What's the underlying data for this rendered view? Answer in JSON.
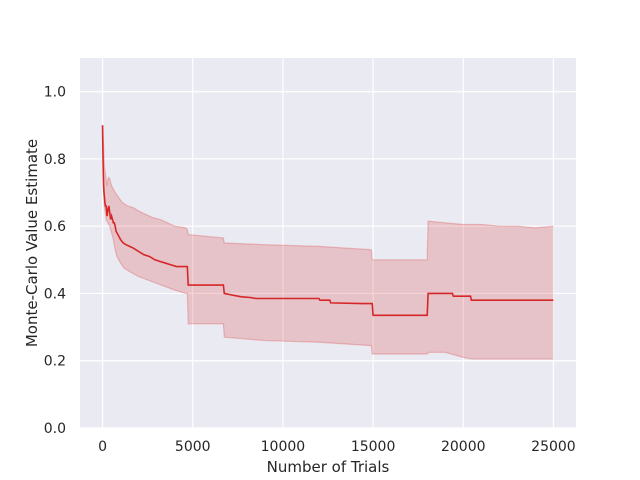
{
  "chart_data": {
    "type": "line",
    "xlabel": "Number of Trials",
    "ylabel": "Monte-Carlo Value Estimate",
    "xlim": [
      -1250,
      26250
    ],
    "ylim": [
      0.0,
      1.1
    ],
    "x_ticks": [
      0,
      5000,
      10000,
      15000,
      20000,
      25000
    ],
    "x_tick_labels": [
      "0",
      "5000",
      "10000",
      "15000",
      "20000",
      "25000"
    ],
    "y_ticks": [
      0.0,
      0.2,
      0.4,
      0.6,
      0.8,
      1.0
    ],
    "y_tick_labels": [
      "0.0",
      "0.2",
      "0.4",
      "0.6",
      "0.8",
      "1.0"
    ],
    "grid": true,
    "background_color": "#eaeaf2",
    "grid_color": "#ffffff",
    "series": [
      {
        "line_color": "#d62728",
        "band_color": "#d62728",
        "mean": {
          "x": [
            0,
            20,
            40,
            60,
            80,
            100,
            130,
            160,
            200,
            250,
            300,
            350,
            400,
            450,
            500,
            550,
            600,
            650,
            700,
            750,
            800,
            900,
            1000,
            1150,
            1300,
            1500,
            1700,
            2000,
            2300,
            2600,
            2900,
            3200,
            3500,
            3800,
            4100,
            4400,
            4700,
            4750,
            6700,
            6750,
            7200,
            7700,
            8200,
            8500,
            12000,
            12050,
            12600,
            12650,
            14400,
            14950,
            15000,
            18000,
            18050,
            19400,
            19450,
            20400,
            20450,
            25000
          ],
          "y": [
            0.9,
            0.82,
            0.76,
            0.72,
            0.7,
            0.69,
            0.67,
            0.66,
            0.66,
            0.63,
            0.65,
            0.66,
            0.64,
            0.62,
            0.63,
            0.62,
            0.61,
            0.61,
            0.6,
            0.585,
            0.58,
            0.57,
            0.56,
            0.55,
            0.545,
            0.54,
            0.535,
            0.525,
            0.515,
            0.51,
            0.5,
            0.495,
            0.49,
            0.485,
            0.48,
            0.48,
            0.48,
            0.425,
            0.425,
            0.4,
            0.395,
            0.39,
            0.388,
            0.385,
            0.385,
            0.38,
            0.38,
            0.372,
            0.37,
            0.37,
            0.335,
            0.335,
            0.4,
            0.4,
            0.392,
            0.392,
            0.38,
            0.38
          ]
        },
        "upper": {
          "x": [
            0,
            50,
            100,
            150,
            200,
            250,
            300,
            350,
            400,
            450,
            500,
            700,
            900,
            1100,
            1400,
            1700,
            2000,
            2400,
            2800,
            3200,
            3600,
            4000,
            4600,
            4700,
            4750,
            6700,
            6750,
            9000,
            12000,
            14900,
            14950,
            18000,
            18050,
            19000,
            20000,
            21000,
            22000,
            23000,
            24000,
            25000
          ],
          "y": [
            0.9,
            0.85,
            0.78,
            0.76,
            0.74,
            0.72,
            0.74,
            0.745,
            0.74,
            0.73,
            0.72,
            0.7,
            0.685,
            0.67,
            0.66,
            0.655,
            0.645,
            0.635,
            0.625,
            0.62,
            0.61,
            0.6,
            0.595,
            0.59,
            0.575,
            0.565,
            0.55,
            0.545,
            0.54,
            0.53,
            0.5,
            0.5,
            0.615,
            0.61,
            0.605,
            0.605,
            0.6,
            0.6,
            0.595,
            0.6
          ]
        },
        "lower": {
          "x": [
            0,
            50,
            100,
            150,
            200,
            300,
            400,
            500,
            600,
            700,
            800,
            1000,
            1200,
            1500,
            2000,
            2500,
            3000,
            3500,
            4000,
            4600,
            4700,
            4750,
            6700,
            6750,
            9000,
            12000,
            14900,
            14950,
            18000,
            18050,
            19000,
            20000,
            20500,
            21000,
            22000,
            23000,
            24000,
            25000
          ],
          "y": [
            0.9,
            0.72,
            0.66,
            0.64,
            0.62,
            0.61,
            0.6,
            0.58,
            0.56,
            0.53,
            0.51,
            0.49,
            0.475,
            0.465,
            0.45,
            0.44,
            0.43,
            0.42,
            0.41,
            0.4,
            0.4,
            0.31,
            0.31,
            0.27,
            0.26,
            0.255,
            0.245,
            0.22,
            0.22,
            0.225,
            0.225,
            0.21,
            0.205,
            0.205,
            0.205,
            0.205,
            0.205,
            0.205
          ]
        }
      }
    ]
  }
}
